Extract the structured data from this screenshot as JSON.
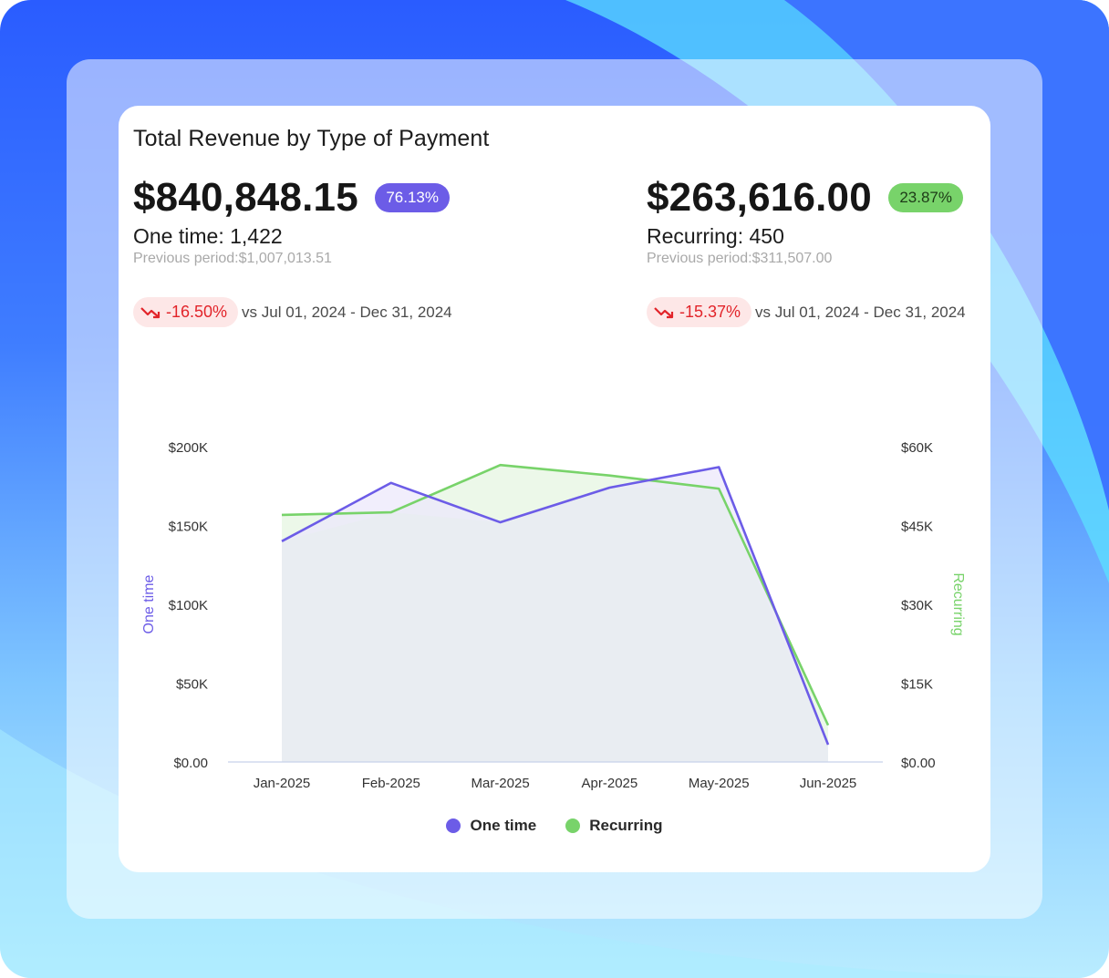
{
  "card": {
    "title": "Total Revenue by Type of Payment"
  },
  "one_time": {
    "amount": "$840,848.15",
    "share": "76.13%",
    "count_line": "One time: 1,422",
    "previous_line": "Previous period:$1,007,013.51",
    "change": "-16.50%",
    "vs_text": "vs Jul 01, 2024 - Dec 31, 2024",
    "color": "#6c5ce7"
  },
  "recurring": {
    "amount": "$263,616.00",
    "share": "23.87%",
    "count_line": "Recurring: 450",
    "previous_line": "Previous period:$311,507.00",
    "change": "-15.37%",
    "vs_text": "vs Jul 01, 2024 - Dec 31, 2024",
    "color": "#78d36a"
  },
  "colors": {
    "negative": "#e2242a",
    "negative_bg": "#fde7e7",
    "area_fill": "#e9edf2",
    "axis_line": "#c8d2ea",
    "tick_text": "#333333"
  },
  "legend": {
    "one_time": "One time",
    "recurring": "Recurring"
  },
  "icons": {
    "trend": "trending-down-icon"
  },
  "chart_data": {
    "type": "line",
    "categories": [
      "Jan-2025",
      "Feb-2025",
      "Mar-2025",
      "Apr-2025",
      "May-2025",
      "Jun-2025"
    ],
    "series": [
      {
        "name": "One time",
        "axis": "left",
        "color": "#6c5ce7",
        "values": [
          140000,
          177000,
          152000,
          174000,
          187000,
          11000
        ]
      },
      {
        "name": "Recurring",
        "axis": "right",
        "color": "#78d36a",
        "values": [
          47000,
          47500,
          56500,
          54500,
          52000,
          7000
        ]
      }
    ],
    "left_axis": {
      "label": "One time",
      "range": [
        0,
        200000
      ],
      "ticks": [
        "$0.00",
        "$50K",
        "$100K",
        "$150K",
        "$200K"
      ]
    },
    "right_axis": {
      "label": "Recurring",
      "range": [
        0,
        60000
      ],
      "ticks": [
        "$0.00",
        "$15K",
        "$30K",
        "$45K",
        "$60K"
      ]
    },
    "grid": false,
    "legend_position": "bottom"
  }
}
